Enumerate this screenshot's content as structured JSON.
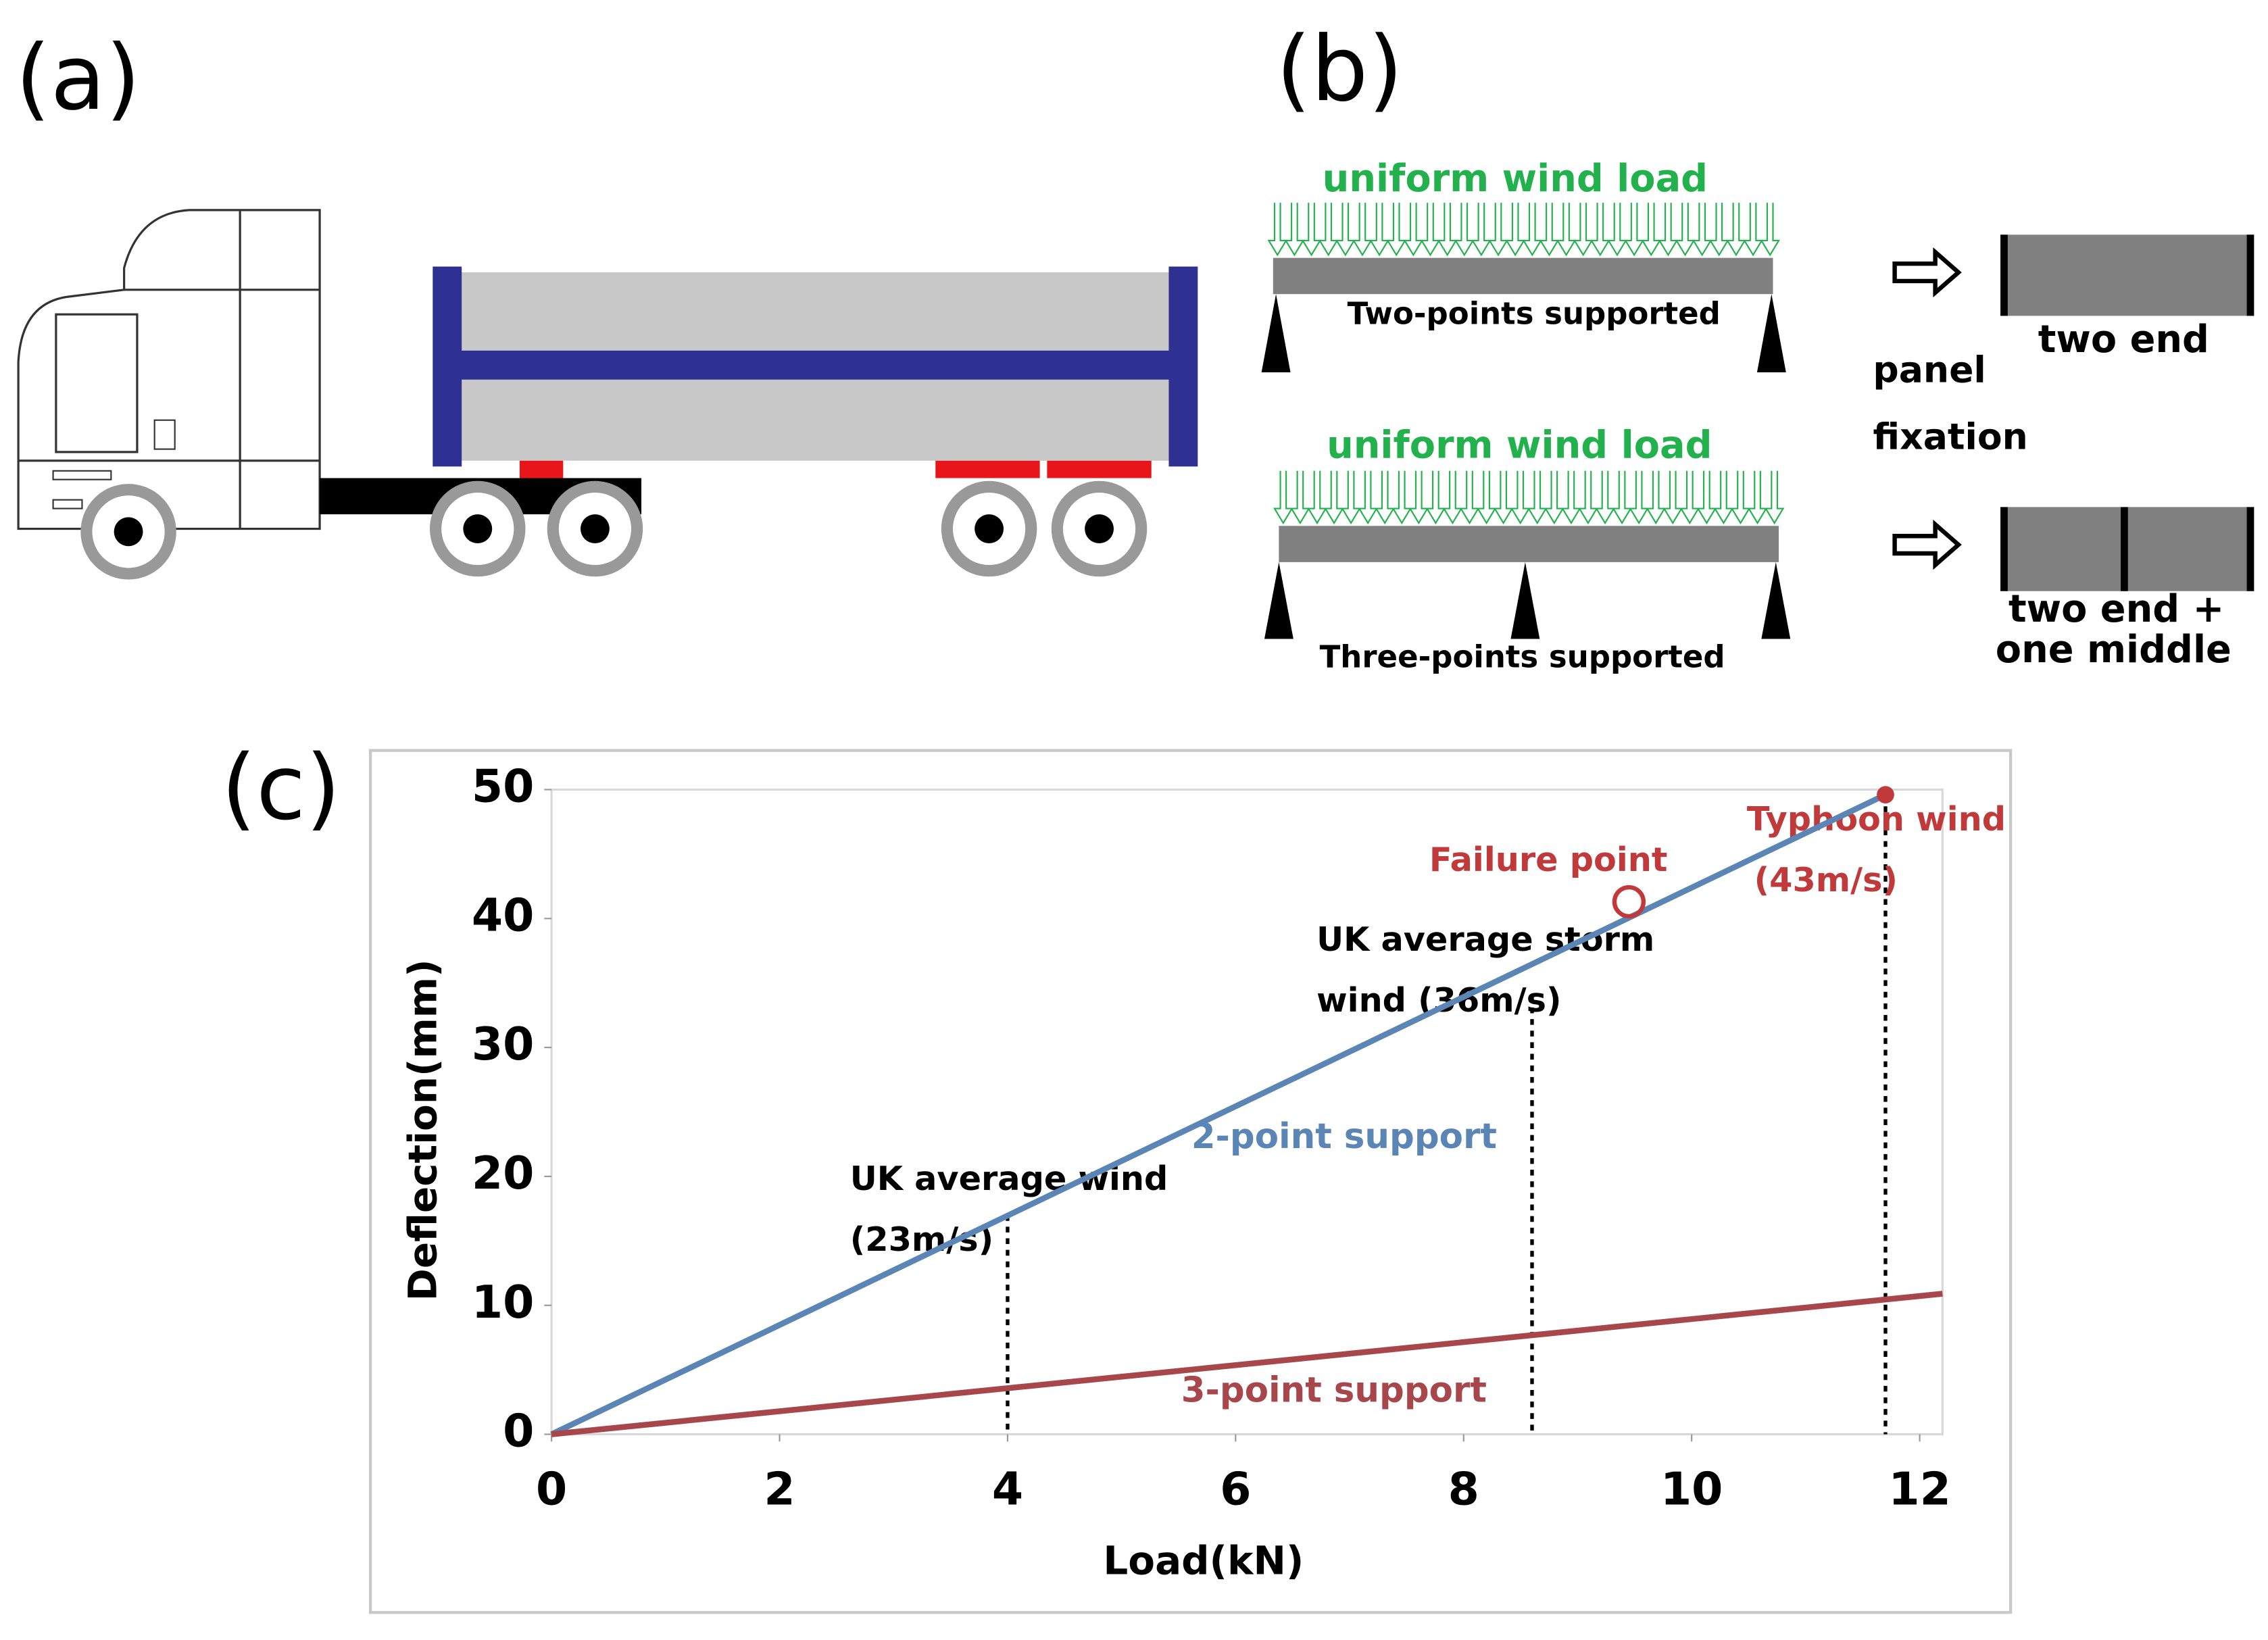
{
  "panels": {
    "a": {
      "label": "(a)"
    },
    "b": {
      "label": "(b)",
      "top_load": "uniform wind load",
      "top_support": "Two-points supported",
      "bottom_load": "uniform wind load",
      "bottom_support": "Three-points supported",
      "fixation": [
        "panel",
        "fixation"
      ],
      "top_panel": "two end",
      "bottom_panel": [
        "two end +",
        "one middle"
      ]
    },
    "c": {
      "label": "(c)"
    }
  },
  "chart_data": {
    "type": "line",
    "xlabel": "Load(kN)",
    "ylabel": "Deflection(mm)",
    "xlim": [
      0,
      12.2
    ],
    "ylim": [
      0,
      50
    ],
    "xticks": [
      0,
      2,
      4,
      6,
      8,
      10,
      12
    ],
    "yticks": [
      0,
      10,
      20,
      30,
      40,
      50
    ],
    "series": [
      {
        "name": "2-point support",
        "color": "#5b85b5",
        "x": [
          0,
          11.7
        ],
        "values": [
          0,
          49.6
        ]
      },
      {
        "name": "3-point support",
        "color": "#a8474b",
        "x": [
          0,
          12.2
        ],
        "values": [
          0,
          10.9
        ]
      }
    ],
    "markers": [
      {
        "x": 4,
        "y": 17,
        "label": [
          "UK average wind",
          "(23m/s)"
        ]
      },
      {
        "x": 8.6,
        "y": 34,
        "label": [
          "UK average storm",
          "wind (36m/s)"
        ]
      },
      {
        "x": 11.7,
        "y": 49.6,
        "label": [
          "Typhoon wind",
          "(43m/s)"
        ]
      }
    ],
    "failure_point": {
      "x": 9.45,
      "y": 41.3,
      "label": "Failure point"
    }
  }
}
